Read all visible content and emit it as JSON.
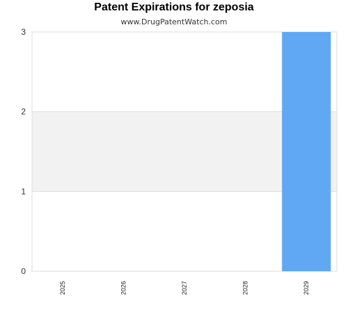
{
  "chart_data": {
    "type": "bar",
    "title": "Patent Expirations for zeposia",
    "subtitle": "www.DrugPatentWatch.com",
    "categories": [
      "2025",
      "2026",
      "2027",
      "2028",
      "2029"
    ],
    "values": [
      0,
      0,
      0,
      0,
      3
    ],
    "ylim": [
      0,
      3
    ],
    "yticks": [
      "0",
      "1",
      "2",
      "3"
    ],
    "xlabel": "",
    "ylabel": "",
    "bar_color": "#60a8f4",
    "band_color": "#f2f2f2"
  }
}
